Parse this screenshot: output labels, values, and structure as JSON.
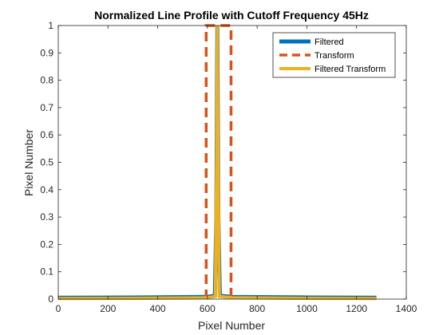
{
  "chart_data": {
    "type": "line",
    "title": "Normalized Line Profile with Cutoff Frequency 45Hz",
    "xlabel": "Pixel Number",
    "ylabel": "Pixel Number",
    "xlim": [
      0,
      1400
    ],
    "ylim": [
      0,
      1
    ],
    "xticks": [
      0,
      200,
      400,
      600,
      800,
      1000,
      1200,
      1400
    ],
    "yticks": [
      0,
      0.1,
      0.2,
      0.3,
      0.4,
      0.5,
      0.6,
      0.7,
      0.8,
      0.9,
      1
    ],
    "grid": false,
    "legend_position": "top-right",
    "series": [
      {
        "name": "Filtered",
        "color": "#0072BD",
        "style": "solid",
        "x": [
          0,
          300,
          600,
          630,
          636,
          640,
          644,
          650,
          700,
          1000,
          1280
        ],
        "y": [
          0.005,
          0.006,
          0.008,
          0.012,
          0.3,
          1.0,
          0.3,
          0.012,
          0.008,
          0.006,
          0.005
        ]
      },
      {
        "name": "Transform",
        "color": "#D95319",
        "style": "dashed",
        "x": [
          595,
          595,
          695,
          695
        ],
        "y": [
          0,
          1,
          1,
          0
        ]
      },
      {
        "name": "Filtered Transform",
        "color": "#EDB120",
        "style": "solid",
        "x": [
          0,
          300,
          600,
          632,
          637,
          640,
          643,
          648,
          700,
          1000,
          1280
        ],
        "y": [
          0.002,
          0.003,
          0.005,
          0.01,
          0.5,
          1.0,
          0.5,
          0.01,
          0.005,
          0.003,
          0.002
        ]
      }
    ]
  }
}
